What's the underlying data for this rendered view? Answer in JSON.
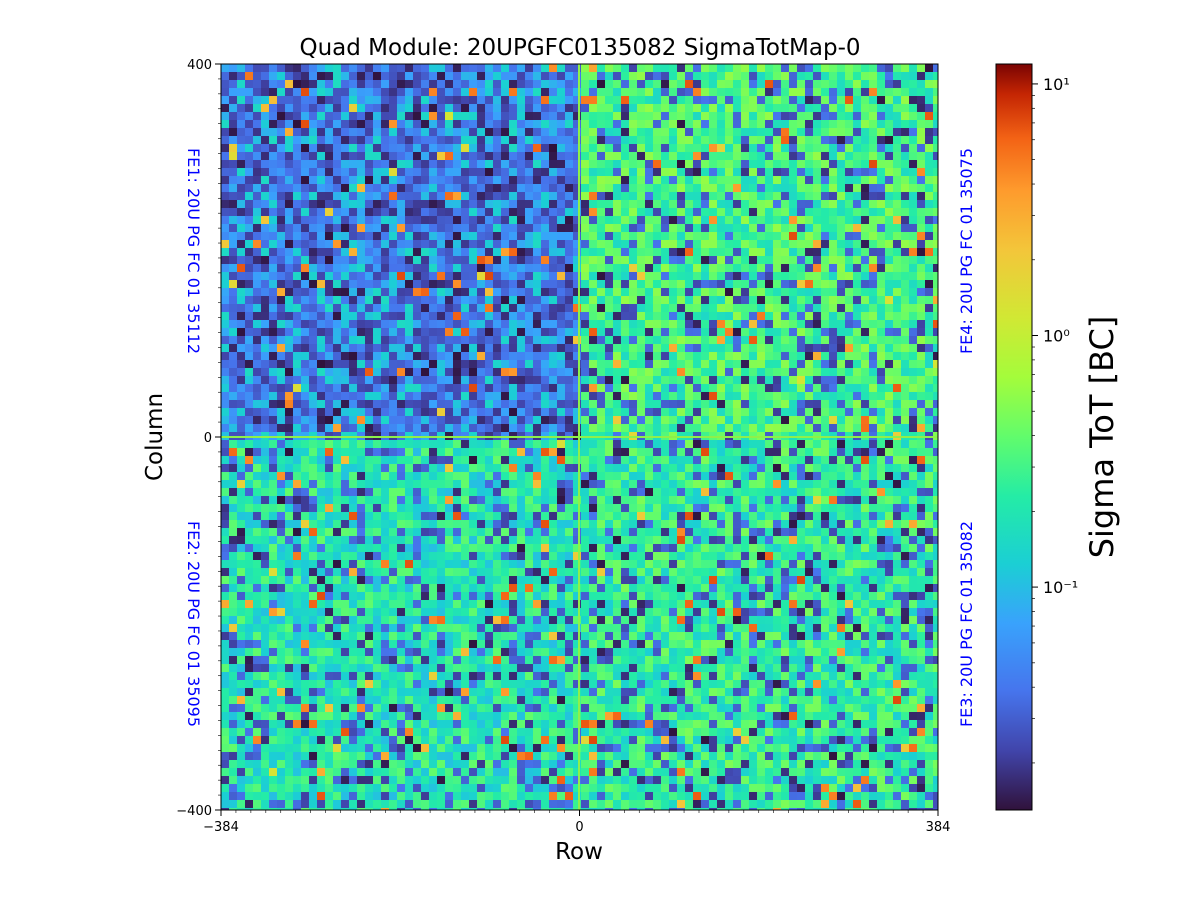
{
  "chart_data": {
    "type": "heatmap",
    "title": "Quad Module: 20UPGFC0135082 SigmaTotMap-0",
    "xlabel": "Row",
    "ylabel": "Column",
    "xlim": [
      -384,
      384
    ],
    "ylim": [
      -400,
      400
    ],
    "x_ticks": [
      -384,
      0,
      384
    ],
    "y_ticks": [
      -400,
      0,
      400
    ],
    "colorbar": {
      "label": "Sigma ToT [BC]",
      "scale": "log",
      "range": [
        0.013,
        12
      ],
      "ticks": [
        {
          "value": 0.1,
          "label": "10⁻¹"
        },
        {
          "value": 1,
          "label": "10⁰"
        },
        {
          "value": 10,
          "label": "10¹"
        }
      ],
      "colormap": "turbo"
    },
    "grid": false,
    "quadrants": [
      {
        "name": "FE1",
        "label": "FE1: 20U PG FC 01 35112",
        "position": "top-left",
        "typical_sigma": 0.08
      },
      {
        "name": "FE4",
        "label": "FE4: 20U PG FC 01 35075",
        "position": "top-right",
        "typical_sigma": 0.3
      },
      {
        "name": "FE2",
        "label": "FE2: 20U PG FC 01 35095",
        "position": "bottom-left",
        "typical_sigma": 0.2
      },
      {
        "name": "FE3",
        "label": "FE3: 20U PG FC 01 35082",
        "position": "bottom-right",
        "typical_sigma": 0.25
      }
    ],
    "chip_label_color": "#0000ff"
  }
}
